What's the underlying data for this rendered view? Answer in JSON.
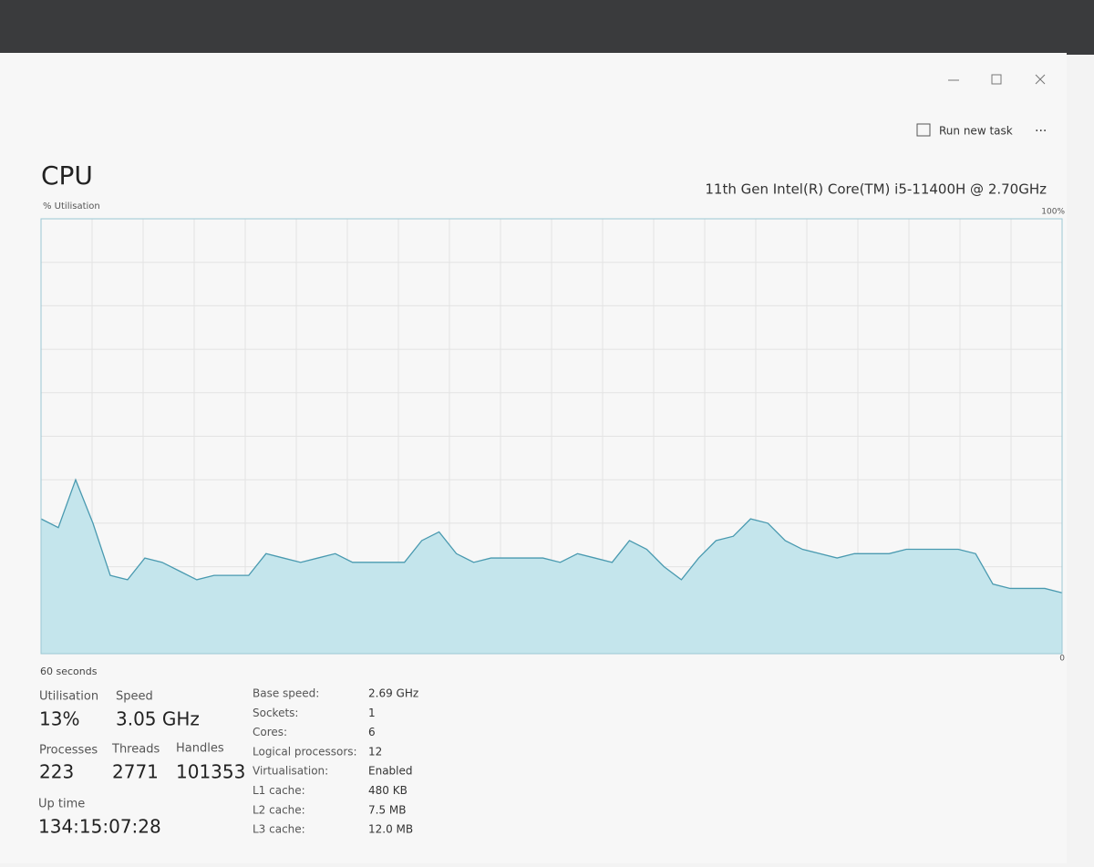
{
  "header": {
    "title": "CPU",
    "processor": "11th Gen Intel(R) Core(TM) i5-11400H @ 2.70GHz",
    "run_new_task": "Run new task"
  },
  "chart_data": {
    "type": "area",
    "y_label": "% Utilisation",
    "x_label": "60 seconds",
    "ylim": [
      0,
      100
    ],
    "yticks": [
      0,
      {
        "value": 100,
        "label": "100%"
      }
    ],
    "color": "#4a9ab0",
    "fill": "#c4e5ec",
    "values": [
      31,
      29,
      40,
      30,
      18,
      17,
      22,
      21,
      19,
      17,
      18,
      18,
      18,
      23,
      22,
      21,
      22,
      23,
      21,
      21,
      21,
      21,
      26,
      28,
      23,
      21,
      22,
      22,
      22,
      22,
      21,
      23,
      22,
      21,
      26,
      24,
      20,
      17,
      22,
      26,
      27,
      31,
      30,
      26,
      24,
      23,
      22,
      23,
      23,
      23,
      24,
      24,
      24,
      24,
      23,
      16,
      15,
      15,
      15,
      14
    ]
  },
  "stats": {
    "utilisation": {
      "label": "Utilisation",
      "value": "13%"
    },
    "speed": {
      "label": "Speed",
      "value": "3.05 GHz"
    },
    "processes": {
      "label": "Processes",
      "value": "223"
    },
    "threads": {
      "label": "Threads",
      "value": "2771"
    },
    "handles": {
      "label": "Handles",
      "value": "101353"
    },
    "up_time": {
      "label": "Up time",
      "value": "134:15:07:28"
    }
  },
  "specs": [
    [
      "Base speed:",
      "2.69 GHz"
    ],
    [
      "Sockets:",
      "1"
    ],
    [
      "Cores:",
      "6"
    ],
    [
      "Logical processors:",
      "12"
    ],
    [
      "Virtualisation:",
      "Enabled"
    ],
    [
      "L1 cache:",
      "480 KB"
    ],
    [
      "L2 cache:",
      "7.5 MB"
    ],
    [
      "L3 cache:",
      "12.0 MB"
    ]
  ]
}
